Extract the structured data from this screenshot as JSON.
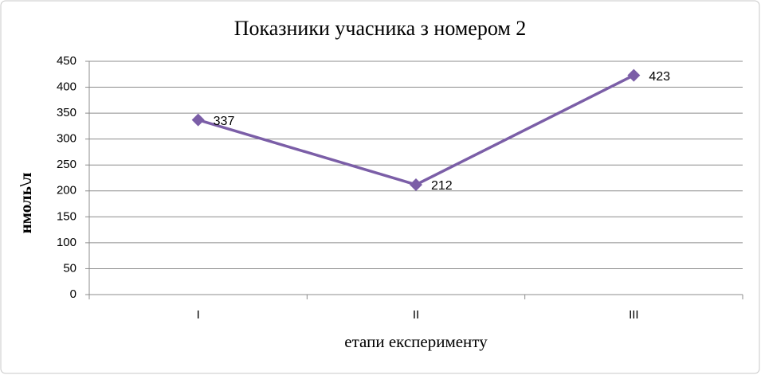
{
  "chart_data": {
    "type": "line",
    "title": "Показники учасника з номером 2",
    "x_label": "етапи експерименту",
    "y_label": "нмоль\\л",
    "categories": [
      "I",
      "II",
      "III"
    ],
    "values": [
      337,
      212,
      423
    ],
    "color": "#7b5ea7",
    "ylim": [
      0,
      450
    ],
    "yticks": [
      0,
      50,
      100,
      150,
      200,
      250,
      300,
      350,
      400,
      450
    ],
    "grid": true
  }
}
